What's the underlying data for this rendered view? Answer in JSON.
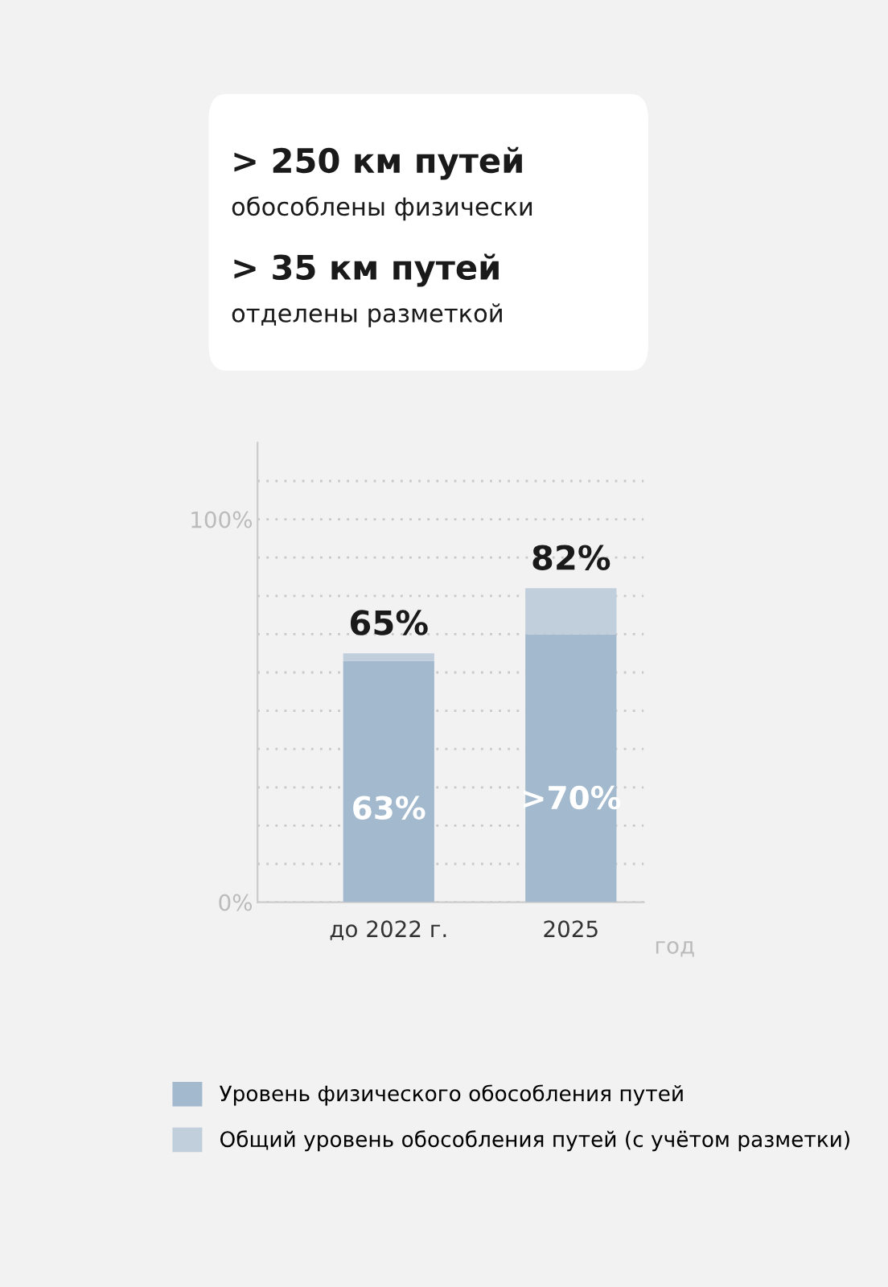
{
  "chart_data": {
    "type": "bar",
    "stacked": true,
    "categories": [
      "до 2022 г.",
      "2025"
    ],
    "series": [
      {
        "name": "Уровень физического обособления путей",
        "color": "#a3b9cd",
        "values": [
          63,
          70
        ],
        "value_labels": [
          "63%",
          ">70%"
        ]
      },
      {
        "name": "Общий уровень обособления путей (с учётом разметки)",
        "color": "#c1cedc",
        "values": [
          2,
          12
        ]
      }
    ],
    "totals": [
      "65%",
      "82%"
    ],
    "xlabel": "год",
    "ylim": [
      0,
      120
    ],
    "yticks": [
      {
        "value": 0,
        "label": "0%"
      },
      {
        "value": 10,
        "label": null
      },
      {
        "value": 20,
        "label": null
      },
      {
        "value": 30,
        "label": null
      },
      {
        "value": 40,
        "label": null
      },
      {
        "value": 50,
        "label": null
      },
      {
        "value": 60,
        "label": null
      },
      {
        "value": 70,
        "label": null
      },
      {
        "value": 80,
        "label": null
      },
      {
        "value": 90,
        "label": null
      },
      {
        "value": 100,
        "label": "100%"
      },
      {
        "value": 110,
        "label": null
      }
    ],
    "grid": "y",
    "legend": "bottom right",
    "annotations": [
      "> 250 км путей",
      "обособлены физически",
      "> 35 км путей",
      "отделены разметкой"
    ]
  }
}
